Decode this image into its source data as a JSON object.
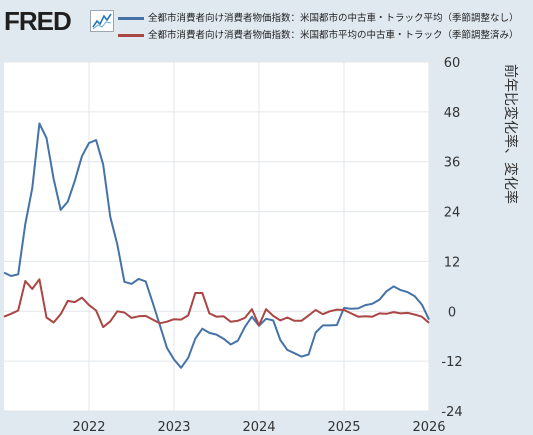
{
  "header": {
    "logo_text": "FRED",
    "legend": [
      {
        "label": "全都市消費者向け消費者物価指数：米国都市の中古車・トラック平均（季節調整なし）",
        "color": "#4572a7"
      },
      {
        "label": "全都市消費者向け消費者物価指数：米国都市平均の中古車・トラック（季節調整済み）",
        "color": "#aa4643"
      }
    ]
  },
  "chart_data": {
    "type": "line",
    "ylabel": "前年比変化率、変化率",
    "ylim": [
      -24,
      60
    ],
    "yticks": [
      60,
      48,
      36,
      24,
      12,
      0,
      -12,
      -24
    ],
    "xlim": [
      "2021-01",
      "2026-01"
    ],
    "xticks": [
      "2022",
      "2023",
      "2024",
      "2025",
      "2026"
    ],
    "grid": true,
    "series": [
      {
        "name": "全都市消費者向け消費者物価指数：米国都市の中古車・トラック平均（季節調整なし）",
        "color": "#4572a7",
        "points": [
          [
            "2021-01",
            9.3
          ],
          [
            "2021-02",
            8.5
          ],
          [
            "2021-03",
            8.9
          ],
          [
            "2021-04",
            21.0
          ],
          [
            "2021-05",
            29.7
          ],
          [
            "2021-06",
            45.2
          ],
          [
            "2021-07",
            41.7
          ],
          [
            "2021-08",
            31.9
          ],
          [
            "2021-09",
            24.4
          ],
          [
            "2021-10",
            26.4
          ],
          [
            "2021-11",
            31.4
          ],
          [
            "2021-12",
            37.3
          ],
          [
            "2022-01",
            40.5
          ],
          [
            "2022-02",
            41.2
          ],
          [
            "2022-03",
            35.3
          ],
          [
            "2022-04",
            22.7
          ],
          [
            "2022-05",
            16.1
          ],
          [
            "2022-06",
            7.1
          ],
          [
            "2022-07",
            6.6
          ],
          [
            "2022-08",
            7.8
          ],
          [
            "2022-09",
            7.2
          ],
          [
            "2022-10",
            2.0
          ],
          [
            "2022-11",
            -3.3
          ],
          [
            "2022-12",
            -8.8
          ],
          [
            "2023-01",
            -11.6
          ],
          [
            "2023-02",
            -13.6
          ],
          [
            "2023-03",
            -11.2
          ],
          [
            "2023-04",
            -6.6
          ],
          [
            "2023-05",
            -4.2
          ],
          [
            "2023-06",
            -5.2
          ],
          [
            "2023-07",
            -5.6
          ],
          [
            "2023-08",
            -6.6
          ],
          [
            "2023-09",
            -8.0
          ],
          [
            "2023-10",
            -7.1
          ],
          [
            "2023-11",
            -3.8
          ],
          [
            "2023-12",
            -1.3
          ],
          [
            "2024-01",
            -3.5
          ],
          [
            "2024-02",
            -1.8
          ],
          [
            "2024-03",
            -2.2
          ],
          [
            "2024-04",
            -6.9
          ],
          [
            "2024-05",
            -9.3
          ],
          [
            "2024-06",
            -10.1
          ],
          [
            "2024-07",
            -10.9
          ],
          [
            "2024-08",
            -10.4
          ],
          [
            "2024-09",
            -5.1
          ],
          [
            "2024-10",
            -3.4
          ],
          [
            "2024-11",
            -3.4
          ],
          [
            "2024-12",
            -3.3
          ],
          [
            "2025-01",
            0.8
          ],
          [
            "2025-02",
            0.6
          ],
          [
            "2025-03",
            0.7
          ],
          [
            "2025-04",
            1.5
          ],
          [
            "2025-05",
            1.8
          ],
          [
            "2025-06",
            2.8
          ],
          [
            "2025-07",
            4.8
          ],
          [
            "2025-08",
            6.0
          ],
          [
            "2025-09",
            5.1
          ],
          [
            "2025-10",
            4.6
          ],
          [
            "2025-11",
            3.6
          ],
          [
            "2025-12",
            1.6
          ],
          [
            "2026-01",
            -2.0
          ]
        ]
      },
      {
        "name": "全都市消費者向け消費者物価指数：米国都市平均の中古車・トラック（季節調整済み）",
        "color": "#aa4643",
        "points": [
          [
            "2021-01",
            -1.3
          ],
          [
            "2021-02",
            -0.6
          ],
          [
            "2021-03",
            0.2
          ],
          [
            "2021-04",
            7.3
          ],
          [
            "2021-05",
            5.4
          ],
          [
            "2021-06",
            7.7
          ],
          [
            "2021-07",
            -1.5
          ],
          [
            "2021-08",
            -2.7
          ],
          [
            "2021-09",
            -0.7
          ],
          [
            "2021-10",
            2.5
          ],
          [
            "2021-11",
            2.2
          ],
          [
            "2021-12",
            3.3
          ],
          [
            "2022-01",
            1.5
          ],
          [
            "2022-02",
            0.2
          ],
          [
            "2022-03",
            -3.8
          ],
          [
            "2022-04",
            -2.4
          ],
          [
            "2022-05",
            0.0
          ],
          [
            "2022-06",
            -0.3
          ],
          [
            "2022-07",
            -1.6
          ],
          [
            "2022-08",
            -1.2
          ],
          [
            "2022-09",
            -1.1
          ],
          [
            "2022-10",
            -2.0
          ],
          [
            "2022-11",
            -2.9
          ],
          [
            "2022-12",
            -2.5
          ],
          [
            "2023-01",
            -1.9
          ],
          [
            "2023-02",
            -2.0
          ],
          [
            "2023-03",
            -1.0
          ],
          [
            "2023-04",
            4.4
          ],
          [
            "2023-05",
            4.4
          ],
          [
            "2023-06",
            -0.5
          ],
          [
            "2023-07",
            -1.3
          ],
          [
            "2023-08",
            -1.2
          ],
          [
            "2023-09",
            -2.5
          ],
          [
            "2023-10",
            -2.3
          ],
          [
            "2023-11",
            -1.6
          ],
          [
            "2023-12",
            0.5
          ],
          [
            "2024-01",
            -3.4
          ],
          [
            "2024-02",
            0.5
          ],
          [
            "2024-03",
            -1.1
          ],
          [
            "2024-04",
            -2.2
          ],
          [
            "2024-05",
            -1.5
          ],
          [
            "2024-06",
            -2.3
          ],
          [
            "2024-07",
            -2.3
          ],
          [
            "2024-08",
            -1.0
          ],
          [
            "2024-09",
            0.3
          ],
          [
            "2024-10",
            -0.7
          ],
          [
            "2024-11",
            0.0
          ],
          [
            "2024-12",
            0.4
          ],
          [
            "2025-01",
            0.3
          ],
          [
            "2025-02",
            -0.5
          ],
          [
            "2025-03",
            -1.3
          ],
          [
            "2025-04",
            -1.2
          ],
          [
            "2025-05",
            -1.3
          ],
          [
            "2025-06",
            -0.5
          ],
          [
            "2025-07",
            -0.6
          ],
          [
            "2025-08",
            -0.2
          ],
          [
            "2025-09",
            -0.5
          ],
          [
            "2025-10",
            -0.4
          ],
          [
            "2025-11",
            -0.8
          ],
          [
            "2025-12",
            -1.3
          ],
          [
            "2026-01",
            -2.8
          ]
        ]
      }
    ]
  }
}
